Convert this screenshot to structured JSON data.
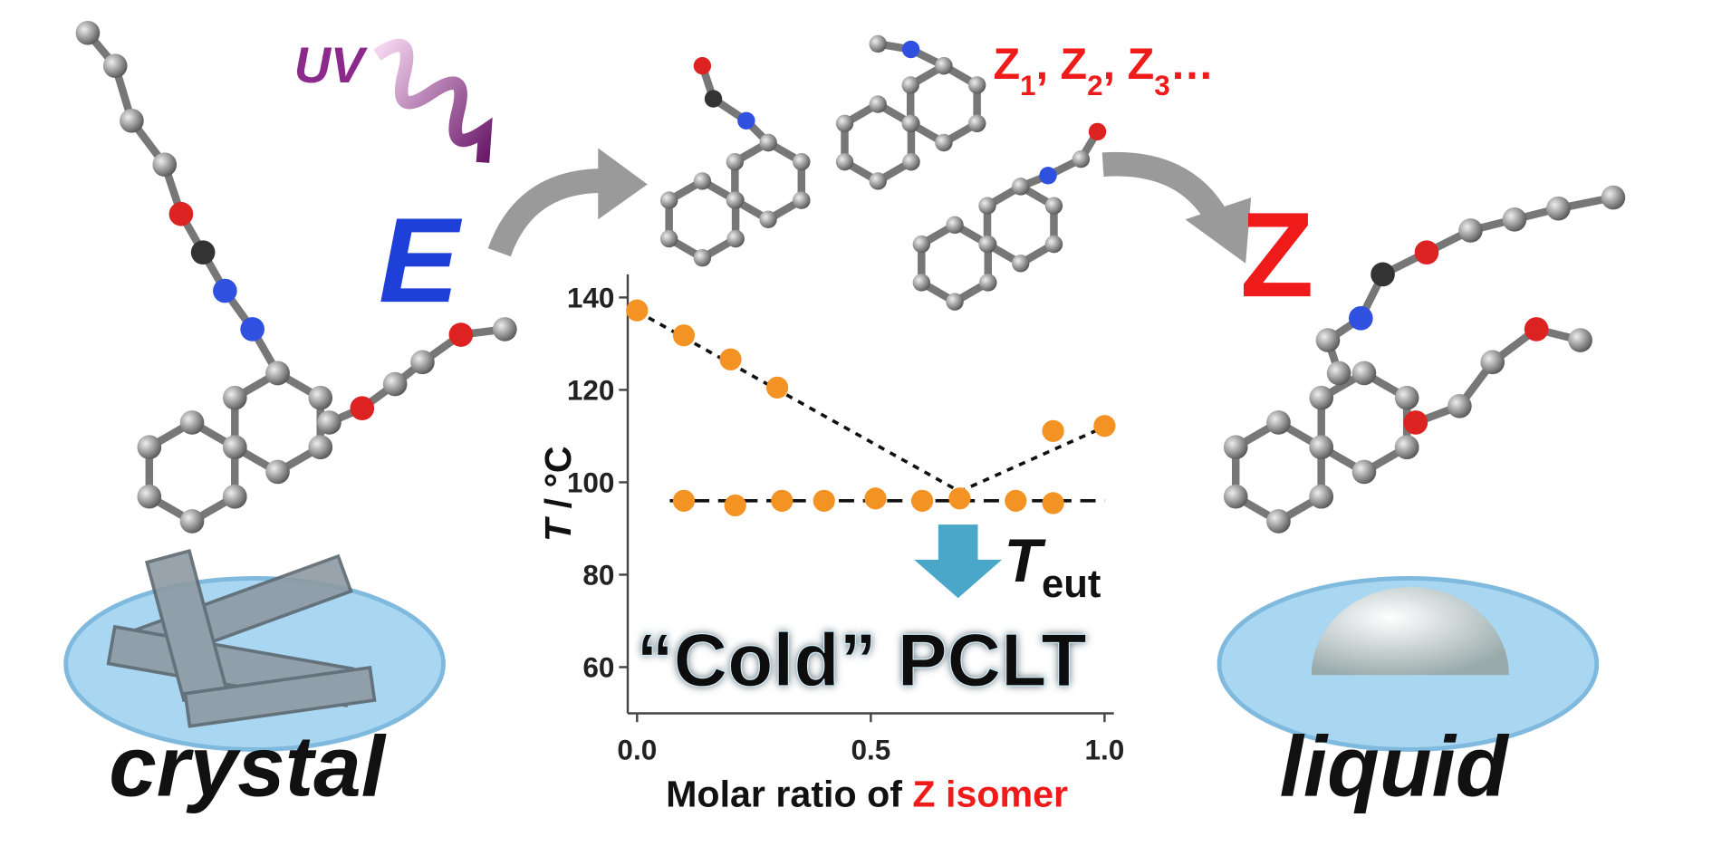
{
  "labels": {
    "uv": "UV",
    "e_isomer": "E",
    "z_isomer": "Z",
    "crystal": "crystal",
    "liquid": "liquid",
    "isomer_list": {
      "items": [
        {
          "symbol": "Z",
          "subscript": "1"
        },
        {
          "symbol": "Z",
          "subscript": "2"
        },
        {
          "symbol": "Z",
          "subscript": "3"
        }
      ],
      "separator": ", ",
      "ellipsis": "…"
    }
  },
  "chart_data": {
    "type": "scatter",
    "x_label": {
      "text": "Molar ratio of ",
      "highlight": "Z isomer"
    },
    "y_label": {
      "symbol": "T",
      "unit": " / °C"
    },
    "annotations": {
      "eutectic": {
        "symbol": "T",
        "subscript": "eut"
      },
      "headline": "“Cold” PCLT"
    },
    "xlim": [
      -0.02,
      1.02
    ],
    "ylim": [
      50,
      145
    ],
    "xticks": [
      {
        "value": 0,
        "label": "0.0"
      },
      0.5,
      {
        "value": 1,
        "label": "1.0"
      }
    ],
    "yticks": [
      60,
      80,
      100,
      120,
      140
    ],
    "series": [
      {
        "color": "#f39323",
        "x": [
          0,
          0.1,
          0.2,
          0.3,
          0.89,
          1.0
        ],
        "values": [
          137.2,
          131.8,
          126.6,
          120.5,
          111.1,
          112.2
        ]
      },
      {
        "color": "#f39323",
        "x": [
          0.1,
          0.21,
          0.31,
          0.4,
          0.51,
          0.61,
          0.69,
          0.81,
          0.89
        ],
        "values": [
          96,
          95,
          96,
          96,
          96.5,
          96,
          96.5,
          96,
          95.5
        ]
      }
    ],
    "guide_lines": [
      {
        "x": [
          0,
          0.69,
          1.0
        ],
        "values": [
          137,
          98,
          112
        ]
      },
      {
        "x": [
          0.07,
          1.0
        ],
        "values": [
          96,
          96
        ]
      }
    ],
    "arrow_color": "#4aa7c9"
  }
}
